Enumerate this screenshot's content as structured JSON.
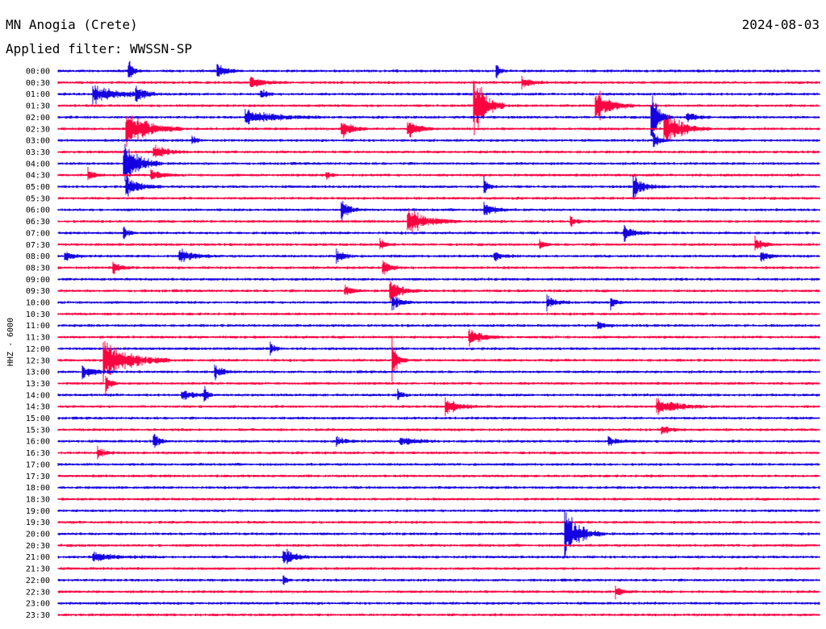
{
  "station_title": "MN Anogia (Crete)",
  "date": "2024-08-03",
  "filter_text": "Applied filter: WWSSN-SP",
  "colors": {
    "blue": "#1400e0",
    "red": "#ff0040",
    "background": "#ffffff",
    "text": "#000000"
  },
  "chart_data": {
    "type": "line",
    "title": "MN Anogia (Crete)",
    "ylabel": "HHZ - 6000",
    "grid": false,
    "legend": "none",
    "row_labels": [
      "00:00",
      "00:30",
      "01:00",
      "01:30",
      "02:00",
      "02:30",
      "03:00",
      "03:30",
      "04:00",
      "04:30",
      "05:00",
      "05:30",
      "06:00",
      "06:30",
      "07:00",
      "07:30",
      "08:00",
      "08:30",
      "09:00",
      "09:30",
      "10:00",
      "10:30",
      "11:00",
      "11:30",
      "12:00",
      "12:30",
      "13:00",
      "13:30",
      "14:00",
      "14:30",
      "15:00",
      "15:30",
      "16:00",
      "16:30",
      "17:00",
      "17:30",
      "18:00",
      "18:30",
      "19:00",
      "19:30",
      "20:00",
      "20:30",
      "21:00",
      "21:30",
      "22:00",
      "22:30",
      "23:00",
      "23:30"
    ],
    "row_colors": [
      "blue",
      "red"
    ],
    "row_minutes": 30,
    "events": [
      {
        "row": 0,
        "minute": 2.8,
        "amp": 1.3,
        "len": 0.4
      },
      {
        "row": 0,
        "minute": 6.3,
        "amp": 0.6,
        "len": 1.0
      },
      {
        "row": 0,
        "minute": 17.3,
        "amp": 0.6,
        "len": 0.4
      },
      {
        "row": 1,
        "minute": 7.6,
        "amp": 0.5,
        "len": 1.5
      },
      {
        "row": 1,
        "minute": 18.3,
        "amp": 0.5,
        "len": 1.0
      },
      {
        "row": 2,
        "minute": 1.4,
        "amp": 0.9,
        "len": 2.5
      },
      {
        "row": 2,
        "minute": 3.1,
        "amp": 0.6,
        "len": 1.0
      },
      {
        "row": 2,
        "minute": 8.0,
        "amp": 0.5,
        "len": 0.6
      },
      {
        "row": 3,
        "minute": 16.4,
        "amp": 3.2,
        "len": 1.2
      },
      {
        "row": 3,
        "minute": 21.2,
        "amp": 1.6,
        "len": 1.5
      },
      {
        "row": 4,
        "minute": 7.4,
        "amp": 0.7,
        "len": 3.0
      },
      {
        "row": 4,
        "minute": 23.4,
        "amp": 2.3,
        "len": 0.8
      },
      {
        "row": 4,
        "minute": 24.8,
        "amp": 0.5,
        "len": 1.0
      },
      {
        "row": 5,
        "minute": 2.7,
        "amp": 2.0,
        "len": 2.2
      },
      {
        "row": 5,
        "minute": 11.2,
        "amp": 1.0,
        "len": 1.0
      },
      {
        "row": 5,
        "minute": 13.8,
        "amp": 1.1,
        "len": 1.0
      },
      {
        "row": 5,
        "minute": 23.9,
        "amp": 1.8,
        "len": 1.8
      },
      {
        "row": 6,
        "minute": 5.3,
        "amp": 0.4,
        "len": 0.5
      },
      {
        "row": 6,
        "minute": 23.5,
        "amp": 0.6,
        "len": 0.6
      },
      {
        "row": 7,
        "minute": 3.8,
        "amp": 0.6,
        "len": 1.5
      },
      {
        "row": 8,
        "minute": 2.6,
        "amp": 2.3,
        "len": 1.5
      },
      {
        "row": 9,
        "minute": 1.2,
        "amp": 0.6,
        "len": 0.7
      },
      {
        "row": 9,
        "minute": 3.7,
        "amp": 0.6,
        "len": 1.0
      },
      {
        "row": 9,
        "minute": 10.6,
        "amp": 0.4,
        "len": 0.5
      },
      {
        "row": 10,
        "minute": 2.7,
        "amp": 1.0,
        "len": 1.4
      },
      {
        "row": 10,
        "minute": 16.8,
        "amp": 0.8,
        "len": 0.5
      },
      {
        "row": 10,
        "minute": 22.7,
        "amp": 1.0,
        "len": 1.2
      },
      {
        "row": 12,
        "minute": 11.2,
        "amp": 0.9,
        "len": 0.8
      },
      {
        "row": 12,
        "minute": 16.8,
        "amp": 0.8,
        "len": 1.0
      },
      {
        "row": 13,
        "minute": 13.8,
        "amp": 1.2,
        "len": 2.0
      },
      {
        "row": 13,
        "minute": 20.2,
        "amp": 0.5,
        "len": 0.6
      },
      {
        "row": 14,
        "minute": 2.6,
        "amp": 0.6,
        "len": 0.5
      },
      {
        "row": 14,
        "minute": 22.3,
        "amp": 0.8,
        "len": 1.0
      },
      {
        "row": 15,
        "minute": 12.7,
        "amp": 0.5,
        "len": 0.6
      },
      {
        "row": 15,
        "minute": 19.0,
        "amp": 0.5,
        "len": 0.5
      },
      {
        "row": 15,
        "minute": 27.5,
        "amp": 0.8,
        "len": 0.7
      },
      {
        "row": 16,
        "minute": 0.3,
        "amp": 0.4,
        "len": 1.0
      },
      {
        "row": 16,
        "minute": 4.8,
        "amp": 0.7,
        "len": 1.5
      },
      {
        "row": 16,
        "minute": 11.0,
        "amp": 0.6,
        "len": 0.8
      },
      {
        "row": 16,
        "minute": 17.2,
        "amp": 0.5,
        "len": 1.0
      },
      {
        "row": 16,
        "minute": 27.7,
        "amp": 0.5,
        "len": 0.8
      },
      {
        "row": 17,
        "minute": 2.2,
        "amp": 0.5,
        "len": 0.8
      },
      {
        "row": 17,
        "minute": 12.8,
        "amp": 0.7,
        "len": 0.8
      },
      {
        "row": 19,
        "minute": 11.3,
        "amp": 0.6,
        "len": 0.8
      },
      {
        "row": 19,
        "minute": 13.1,
        "amp": 1.0,
        "len": 1.2
      },
      {
        "row": 20,
        "minute": 13.2,
        "amp": 0.8,
        "len": 0.8
      },
      {
        "row": 20,
        "minute": 19.3,
        "amp": 0.6,
        "len": 1.0
      },
      {
        "row": 20,
        "minute": 21.8,
        "amp": 0.5,
        "len": 0.6
      },
      {
        "row": 22,
        "minute": 21.3,
        "amp": 0.4,
        "len": 0.8
      },
      {
        "row": 23,
        "minute": 16.2,
        "amp": 1.0,
        "len": 1.2
      },
      {
        "row": 24,
        "minute": 8.4,
        "amp": 0.5,
        "len": 0.5
      },
      {
        "row": 25,
        "minute": 1.8,
        "amp": 2.3,
        "len": 2.6
      },
      {
        "row": 25,
        "minute": 13.2,
        "amp": 1.8,
        "len": 0.6
      },
      {
        "row": 26,
        "minute": 1.0,
        "amp": 0.6,
        "len": 1.2
      },
      {
        "row": 26,
        "minute": 6.2,
        "amp": 0.7,
        "len": 0.8
      },
      {
        "row": 27,
        "minute": 1.9,
        "amp": 1.0,
        "len": 0.5
      },
      {
        "row": 28,
        "minute": 4.9,
        "amp": 0.5,
        "len": 1.2
      },
      {
        "row": 28,
        "minute": 5.8,
        "amp": 0.9,
        "len": 0.3
      },
      {
        "row": 28,
        "minute": 13.4,
        "amp": 0.6,
        "len": 0.4
      },
      {
        "row": 29,
        "minute": 15.3,
        "amp": 0.9,
        "len": 1.2
      },
      {
        "row": 29,
        "minute": 23.6,
        "amp": 0.9,
        "len": 2.0
      },
      {
        "row": 31,
        "minute": 23.8,
        "amp": 0.5,
        "len": 0.8
      },
      {
        "row": 32,
        "minute": 3.8,
        "amp": 0.8,
        "len": 0.5
      },
      {
        "row": 32,
        "minute": 11.0,
        "amp": 0.5,
        "len": 0.8
      },
      {
        "row": 32,
        "minute": 13.5,
        "amp": 0.4,
        "len": 1.5
      },
      {
        "row": 32,
        "minute": 21.7,
        "amp": 0.4,
        "len": 1.2
      },
      {
        "row": 33,
        "minute": 1.6,
        "amp": 0.5,
        "len": 0.7
      },
      {
        "row": 40,
        "minute": 20.0,
        "amp": 2.2,
        "len": 1.5
      },
      {
        "row": 42,
        "minute": 1.4,
        "amp": 0.4,
        "len": 2.5
      },
      {
        "row": 42,
        "minute": 8.9,
        "amp": 1.0,
        "len": 1.0
      },
      {
        "row": 44,
        "minute": 8.9,
        "amp": 0.5,
        "len": 0.3
      },
      {
        "row": 45,
        "minute": 22.0,
        "amp": 0.6,
        "len": 0.8
      }
    ]
  }
}
